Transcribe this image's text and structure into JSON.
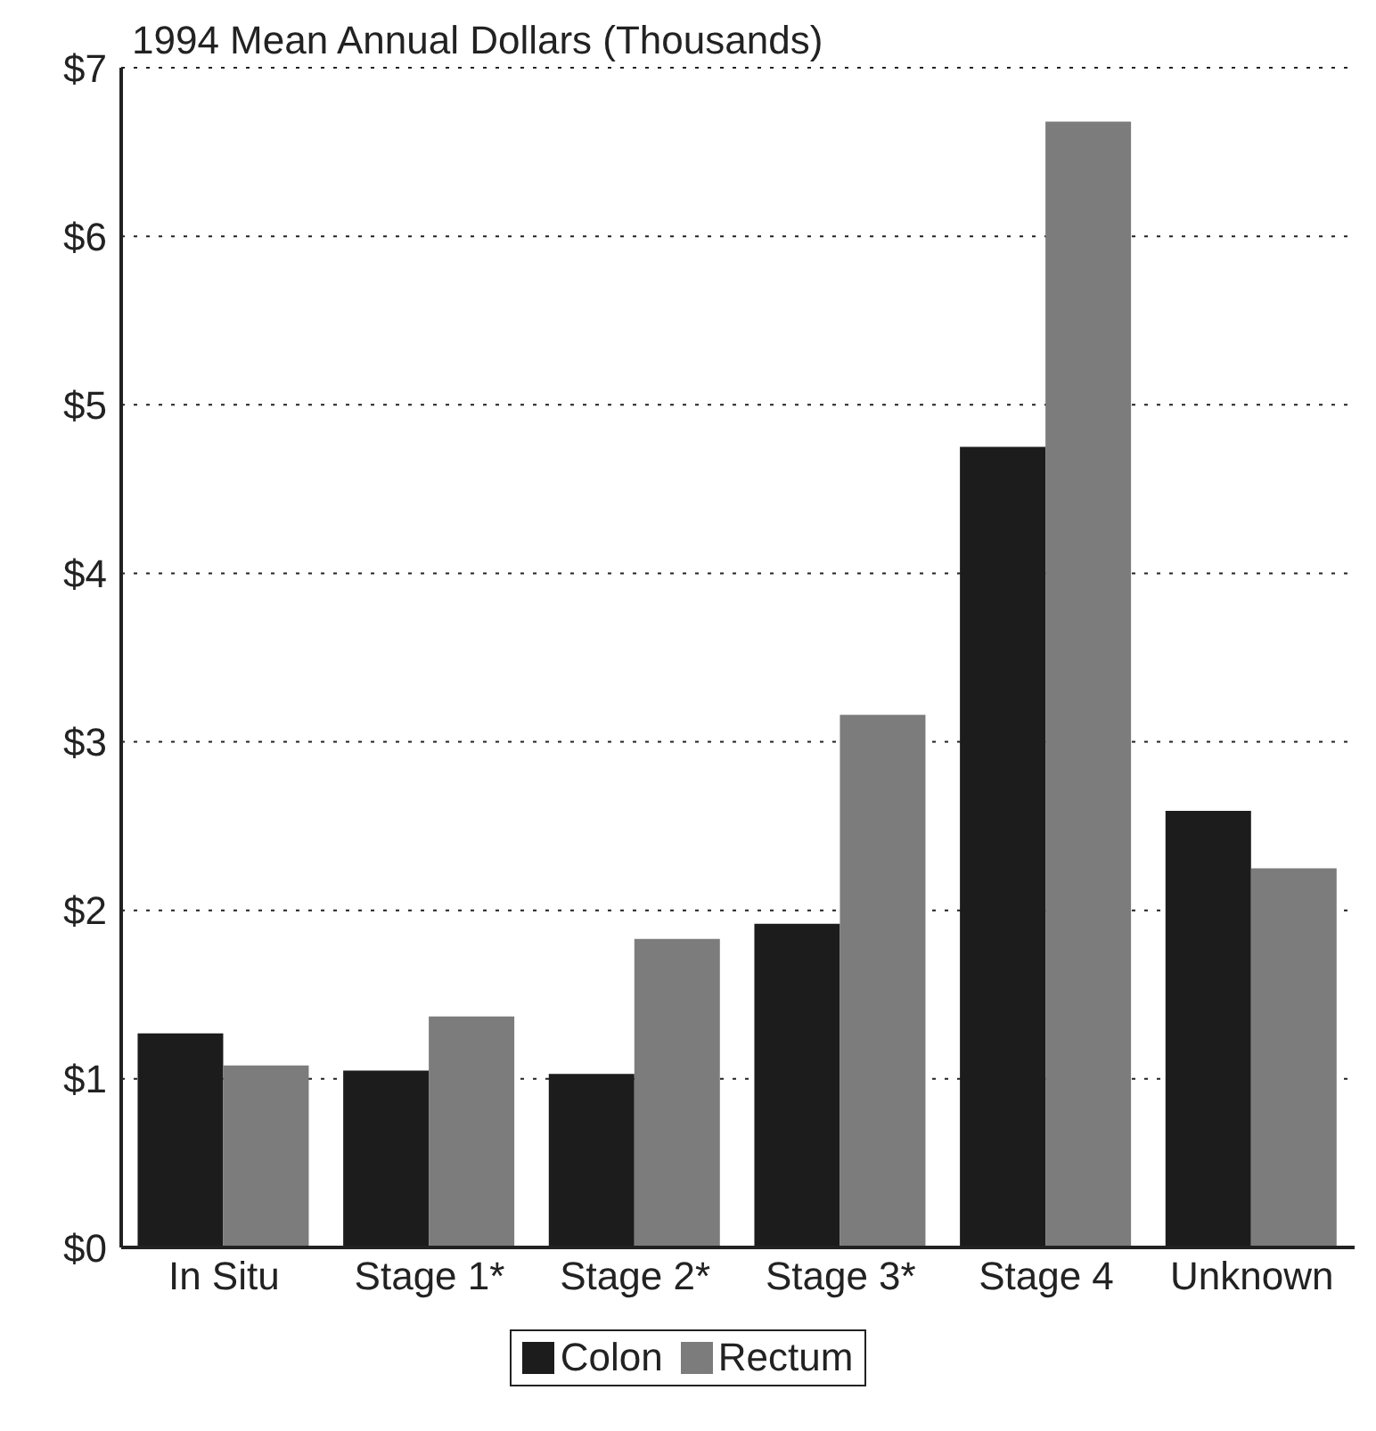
{
  "chart_data": {
    "type": "bar",
    "title": "1994 Mean Annual Dollars (Thousands)",
    "categories": [
      "In Situ",
      "Stage 1*",
      "Stage 2*",
      "Stage 3*",
      "Stage 4",
      "Unknown"
    ],
    "series": [
      {
        "name": "Colon",
        "color": "#1c1c1c",
        "values": [
          1.27,
          1.05,
          1.03,
          1.92,
          4.75,
          2.59
        ]
      },
      {
        "name": "Rectum",
        "color": "#7c7c7c",
        "values": [
          1.08,
          1.37,
          1.83,
          3.16,
          6.68,
          2.25
        ]
      }
    ],
    "ylim": [
      0,
      7
    ],
    "yticks": [
      {
        "value": 0,
        "label": "$0"
      },
      {
        "value": 1,
        "label": "$1"
      },
      {
        "value": 2,
        "label": "$2"
      },
      {
        "value": 3,
        "label": "$3"
      },
      {
        "value": 4,
        "label": "$4"
      },
      {
        "value": 5,
        "label": "$5"
      },
      {
        "value": 6,
        "label": "$6"
      },
      {
        "value": 7,
        "label": "$7"
      }
    ],
    "grid": "y",
    "line_style": "dotted",
    "legend": "bottom"
  }
}
